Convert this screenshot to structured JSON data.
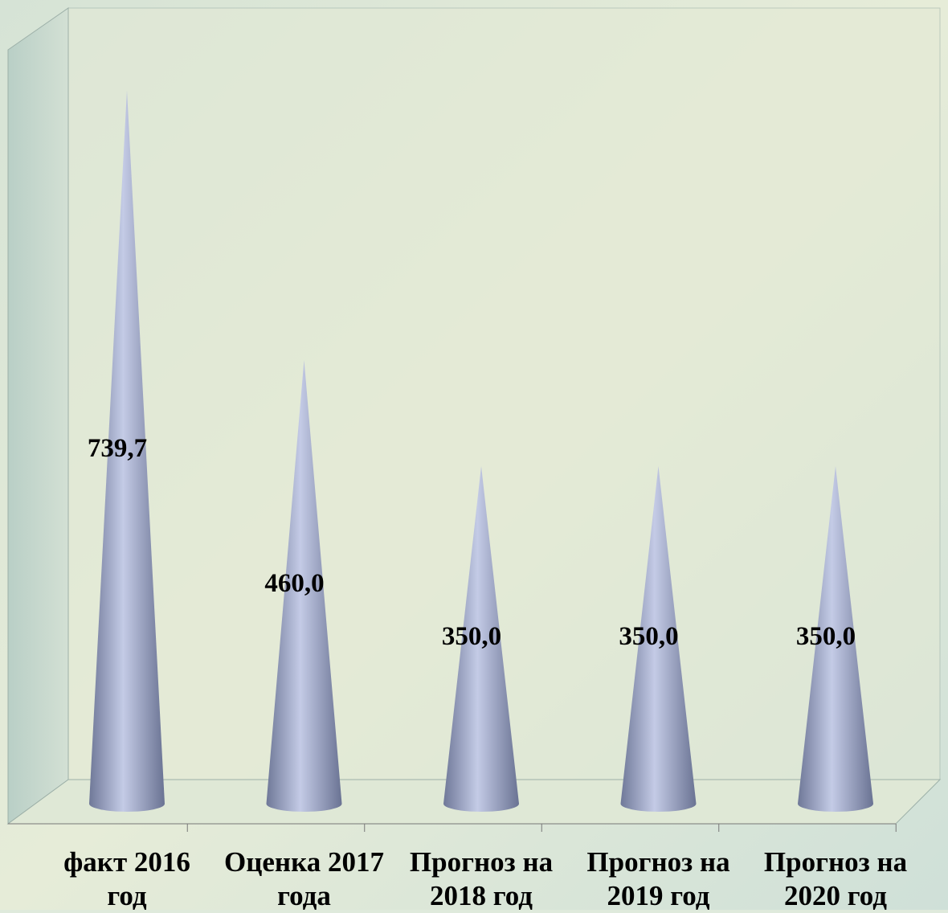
{
  "chart_data": {
    "type": "cone",
    "categories": [
      "факт 2016 год",
      "Оценка 2017 года",
      "Прогноз на 2018 год",
      "Прогноз на 2019 год",
      "Прогноз на 2020 год"
    ],
    "values": [
      739.7,
      460.0,
      350.0,
      350.0,
      350.0
    ],
    "value_labels": [
      "739,7",
      "460,0",
      "350,0",
      "350,0",
      "350,0"
    ],
    "color": "#8a93b4"
  }
}
